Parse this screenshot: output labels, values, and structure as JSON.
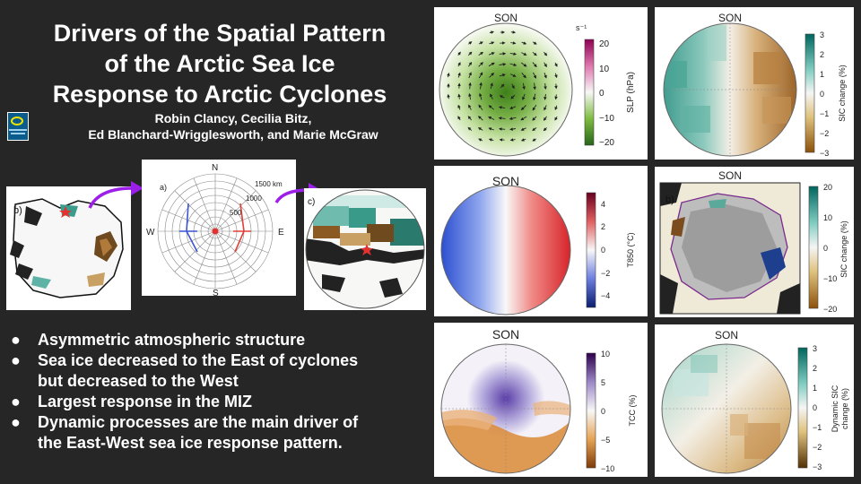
{
  "title_lines": [
    "Drivers of the Spatial Pattern",
    "of the Arctic Sea Ice",
    "Response to Arctic Cyclones"
  ],
  "authors_lines": [
    "Robin Clancy, Cecilia Bitz,",
    "Ed Blanchard-Wrigglesworth, and Marie McGraw"
  ],
  "bullets": [
    {
      "marker": "●",
      "lines": [
        "Asymmetric atmospheric structure"
      ]
    },
    {
      "marker": "●",
      "lines": [
        "Sea ice decreased to the East of cyclones",
        "but decreased to the West"
      ]
    },
    {
      "marker": "●",
      "lines": [
        "Largest response in the MIZ"
      ]
    },
    {
      "marker": "●",
      "lines": [
        "Dynamic processes are the main driver of",
        "the East-West sea ice response pattern."
      ]
    }
  ],
  "schematic": {
    "map_b_label": "b)",
    "grid_label": "a)",
    "map_c_label": "c)",
    "compass": {
      "n": "N",
      "s": "S",
      "e": "E",
      "w": "W"
    },
    "rings": [
      "1500 km",
      "1000",
      "500"
    ],
    "colors": {
      "arrow": "#9b1fe8",
      "west_line": "#3b55d6",
      "east_line": "#e0403a",
      "center": "#e53030"
    }
  },
  "panels": [
    {
      "season": "SON",
      "cbar_label": "SLP (hPa)",
      "unit_top": "s⁻¹",
      "ticks": [
        "20",
        "10",
        "0",
        "−10",
        "−20"
      ]
    },
    {
      "season": "SON",
      "cbar_label": "SIC change (%)",
      "ticks": [
        "3",
        "2",
        "1",
        "0",
        "−1",
        "−2",
        "−3"
      ]
    },
    {
      "season": "SON",
      "cbar_label": "T850 (°C)",
      "ticks": [
        "4",
        "2",
        "0",
        "−2",
        "−4"
      ]
    },
    {
      "season": "SON",
      "map_label": "b)",
      "cbar_label": "SIC change (%)",
      "ticks": [
        "20",
        "10",
        "0",
        "−10",
        "−20"
      ]
    },
    {
      "season": "SON",
      "cbar_label": "TCC (%)",
      "ticks": [
        "10",
        "5",
        "0",
        "−5",
        "−10"
      ]
    },
    {
      "season": "SON",
      "cbar_label_lines": [
        "Dynamic SIC",
        "change (%)"
      ],
      "ticks": [
        "3",
        "2",
        "1",
        "0",
        "−1",
        "−2",
        "−3"
      ]
    }
  ]
}
